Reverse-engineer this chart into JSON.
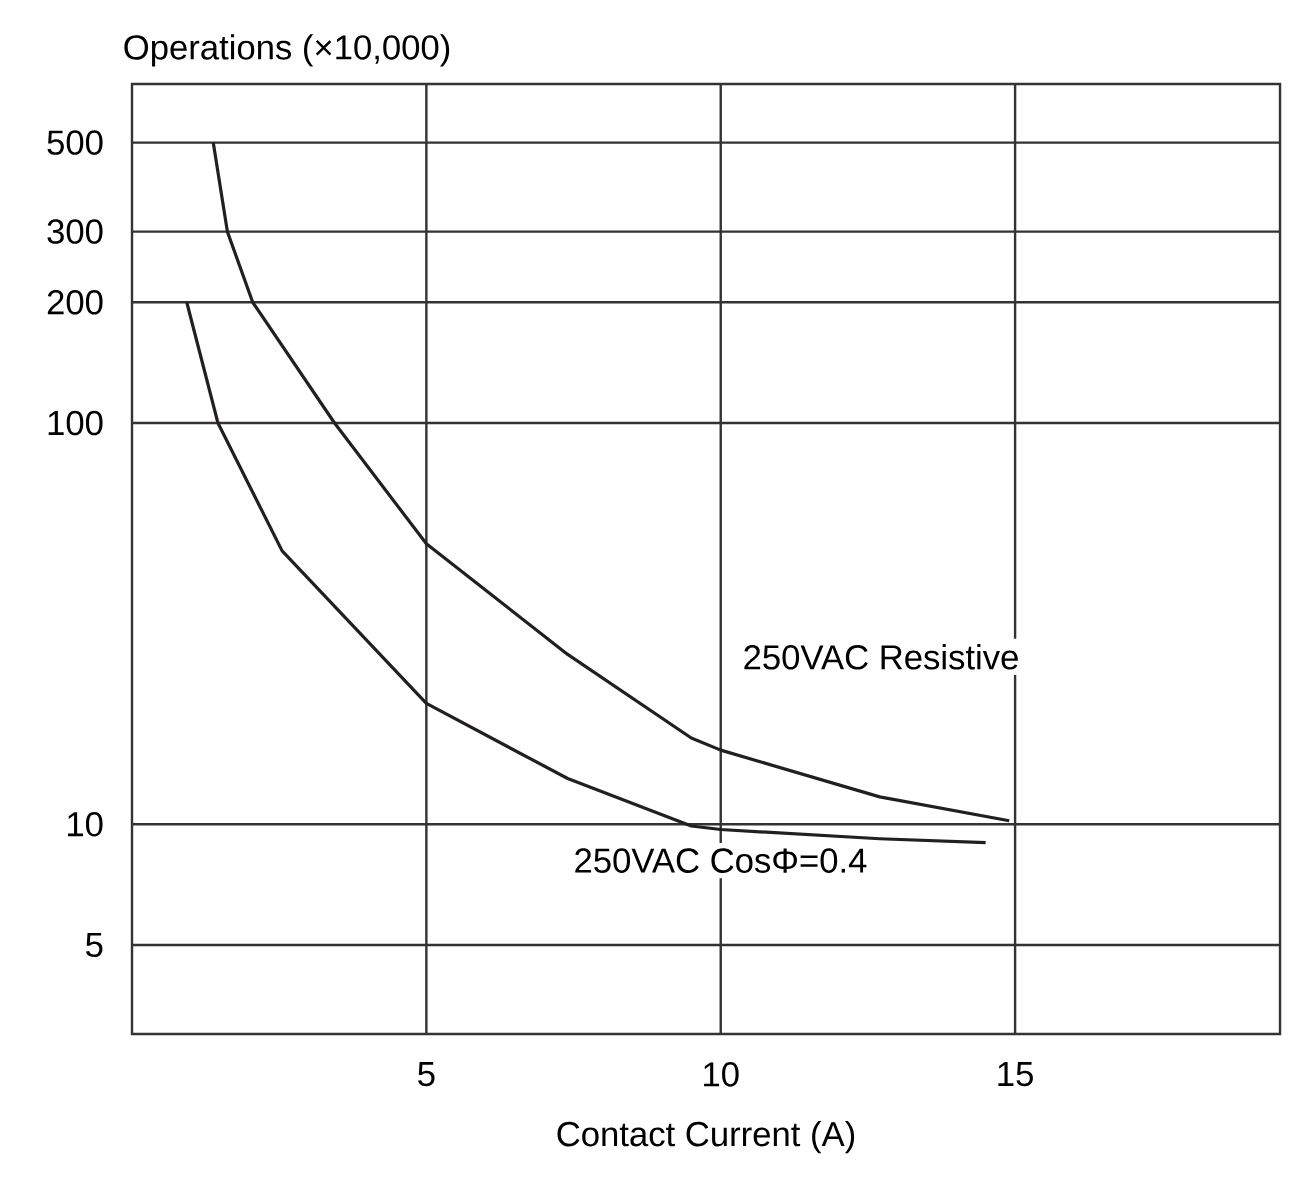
{
  "chart_data": {
    "type": "line",
    "xlabel": "Contact Current (A)",
    "ylabel": "Operations (×10,000)",
    "log": "y",
    "grid": true,
    "line_style": "solid",
    "marker": "none",
    "xlim": [
      0,
      19.5
    ],
    "xticks": [
      5,
      10,
      15
    ],
    "ylim": [
      3,
      700
    ],
    "yticks": [
      5,
      10,
      100,
      200,
      300,
      500
    ],
    "series": [
      {
        "name": "250VAC Resistive",
        "color": "#231f20",
        "x": [
          1.38,
          1.62,
          2.05,
          3.44,
          5.0,
          7.4,
          9.5,
          10,
          12.7,
          14.9
        ],
        "values": [
          500,
          300,
          200,
          100,
          50,
          26.5,
          16.4,
          15.3,
          11.7,
          10.2
        ]
      },
      {
        "name": "250VAC CosΦ=0.4",
        "color": "#231f20",
        "x": [
          0.93,
          1.46,
          2.55,
          5.0,
          7.4,
          9.5,
          10,
          12.7,
          14.5
        ],
        "values": [
          200,
          100,
          48,
          20,
          13,
          9.9,
          9.7,
          9.2,
          9.0
        ]
      }
    ]
  }
}
